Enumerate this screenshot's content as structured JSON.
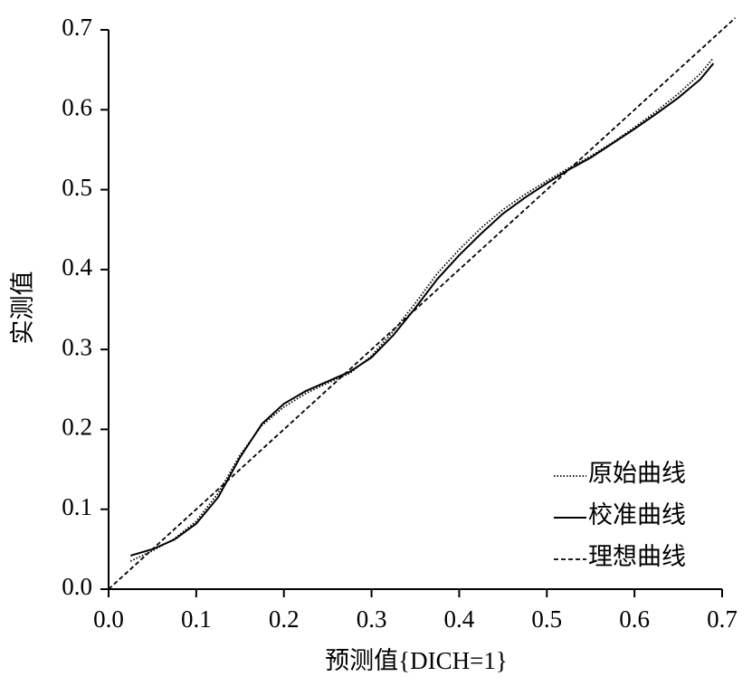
{
  "chart_data": {
    "type": "line",
    "x_label": "预测值{DICH=1}",
    "y_label": "实测值",
    "xlim": [
      0,
      0.7
    ],
    "ylim": [
      0,
      0.7
    ],
    "xticks": [
      {
        "value": 0,
        "label": "0.0"
      },
      0.1,
      0.2,
      0.3,
      0.4,
      0.5,
      0.6,
      0.7
    ],
    "yticks": [
      {
        "value": 0,
        "label": "0.0"
      },
      0.1,
      0.2,
      0.3,
      0.4,
      0.5,
      0.6,
      0.7
    ],
    "legend": "bottom-right",
    "series": [
      {
        "name": "原始曲线",
        "color": "#000000",
        "dash": "dotted",
        "x": [
          0.025,
          0.05,
          0.075,
          0.1,
          0.125,
          0.15,
          0.175,
          0.2,
          0.225,
          0.25,
          0.275,
          0.3,
          0.325,
          0.35,
          0.375,
          0.4,
          0.425,
          0.45,
          0.475,
          0.5,
          0.525,
          0.55,
          0.575,
          0.6,
          0.625,
          0.65,
          0.675,
          0.69
        ],
        "values": [
          0.035,
          0.048,
          0.063,
          0.085,
          0.12,
          0.168,
          0.205,
          0.228,
          0.245,
          0.258,
          0.27,
          0.292,
          0.323,
          0.358,
          0.395,
          0.425,
          0.452,
          0.475,
          0.494,
          0.511,
          0.527,
          0.542,
          0.559,
          0.578,
          0.598,
          0.62,
          0.645,
          0.665
        ]
      },
      {
        "name": "校准曲线",
        "color": "#000000",
        "dash": "solid",
        "x": [
          0.025,
          0.05,
          0.075,
          0.1,
          0.125,
          0.15,
          0.175,
          0.2,
          0.225,
          0.25,
          0.275,
          0.3,
          0.325,
          0.35,
          0.375,
          0.4,
          0.425,
          0.45,
          0.475,
          0.5,
          0.525,
          0.55,
          0.575,
          0.6,
          0.625,
          0.65,
          0.675,
          0.69
        ],
        "values": [
          0.042,
          0.05,
          0.062,
          0.082,
          0.115,
          0.165,
          0.207,
          0.232,
          0.248,
          0.26,
          0.272,
          0.29,
          0.318,
          0.352,
          0.388,
          0.418,
          0.445,
          0.47,
          0.49,
          0.508,
          0.525,
          0.54,
          0.558,
          0.576,
          0.595,
          0.615,
          0.638,
          0.658
        ]
      },
      {
        "name": "理想曲线",
        "color": "#000000",
        "dash": "dashed",
        "x": [
          0,
          0.715
        ],
        "values": [
          0,
          0.715
        ]
      }
    ]
  }
}
